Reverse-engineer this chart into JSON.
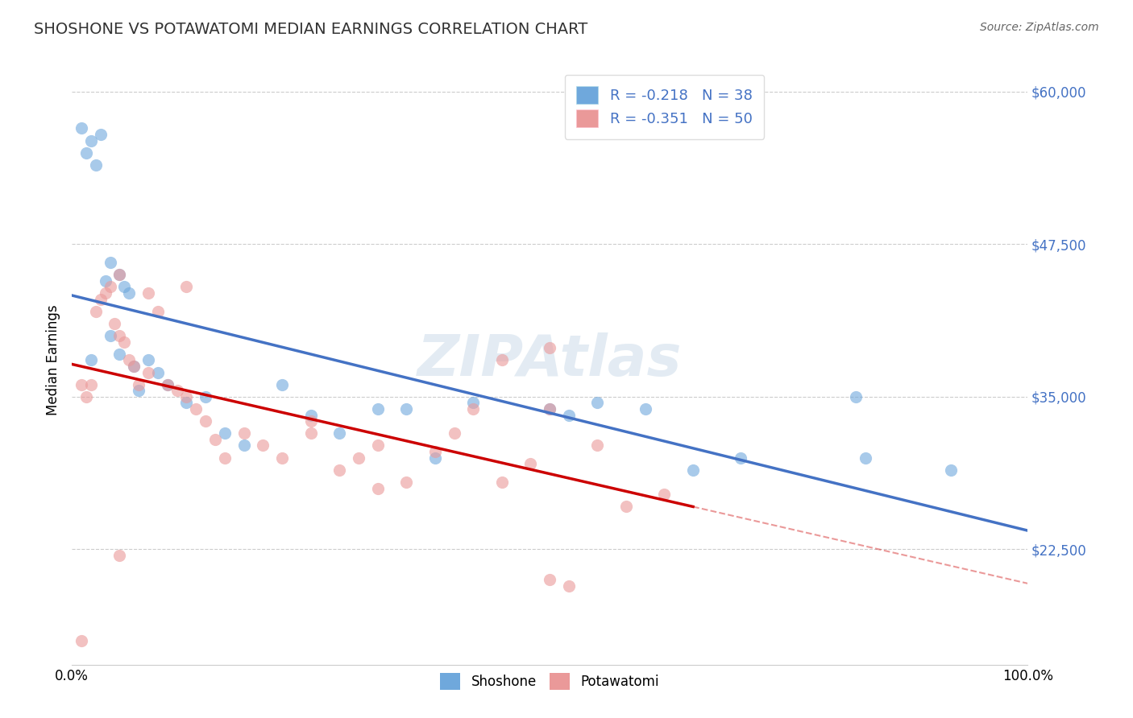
{
  "title": "SHOSHONE VS POTAWATOMI MEDIAN EARNINGS CORRELATION CHART",
  "source": "Source: ZipAtlas.com",
  "xlabel": "",
  "ylabel": "Median Earnings",
  "xlim": [
    0.0,
    1.0
  ],
  "ylim": [
    13000,
    63000
  ],
  "yticks": [
    22500,
    35000,
    47500,
    60000
  ],
  "ytick_labels": [
    "$22,500",
    "$35,000",
    "$47,500",
    "$60,000"
  ],
  "xticks": [
    0.0,
    0.1,
    0.2,
    0.3,
    0.4,
    0.5,
    0.6,
    0.7,
    0.8,
    0.9,
    1.0
  ],
  "xtick_labels": [
    "0.0%",
    "",
    "",
    "",
    "",
    "",
    "",
    "",
    "",
    "",
    "100.0%"
  ],
  "shoshone_color": "#6fa8dc",
  "potawatomi_color": "#ea9999",
  "shoshone_line_color": "#4472c4",
  "potawatomi_line_color": "#cc0000",
  "legend_r_shoshone": "R = -0.218",
  "legend_n_shoshone": "N = 38",
  "legend_r_potawatomi": "R = -0.351",
  "legend_n_potawatomi": "N = 50",
  "shoshone_x": [
    0.01,
    0.02,
    0.03,
    0.015,
    0.025,
    0.035,
    0.04,
    0.05,
    0.055,
    0.06,
    0.02,
    0.04,
    0.05,
    0.065,
    0.07,
    0.08,
    0.09,
    0.1,
    0.12,
    0.14,
    0.16,
    0.18,
    0.22,
    0.25,
    0.28,
    0.32,
    0.35,
    0.38,
    0.42,
    0.5,
    0.52,
    0.55,
    0.6,
    0.65,
    0.7,
    0.82,
    0.83,
    0.92
  ],
  "shoshone_y": [
    57000,
    56000,
    56500,
    55000,
    54000,
    44500,
    46000,
    45000,
    44000,
    43500,
    38000,
    40000,
    38500,
    37500,
    35500,
    38000,
    37000,
    36000,
    34500,
    35000,
    32000,
    31000,
    36000,
    33500,
    32000,
    34000,
    34000,
    30000,
    34500,
    34000,
    33500,
    34500,
    34000,
    29000,
    30000,
    35000,
    30000,
    29000
  ],
  "potawatomi_x": [
    0.01,
    0.015,
    0.02,
    0.025,
    0.03,
    0.035,
    0.04,
    0.045,
    0.05,
    0.055,
    0.06,
    0.065,
    0.07,
    0.08,
    0.09,
    0.1,
    0.11,
    0.12,
    0.13,
    0.14,
    0.15,
    0.16,
    0.18,
    0.2,
    0.22,
    0.25,
    0.28,
    0.3,
    0.32,
    0.35,
    0.38,
    0.4,
    0.42,
    0.45,
    0.48,
    0.5,
    0.52,
    0.55,
    0.58,
    0.62,
    0.01,
    0.05,
    0.08,
    0.12,
    0.25,
    0.32,
    0.45,
    0.5,
    0.5,
    0.05
  ],
  "potawatomi_y": [
    15000,
    35000,
    36000,
    42000,
    43000,
    43500,
    44000,
    41000,
    40000,
    39500,
    38000,
    37500,
    36000,
    43500,
    42000,
    36000,
    35500,
    35000,
    34000,
    33000,
    31500,
    30000,
    32000,
    31000,
    30000,
    33000,
    29000,
    30000,
    31000,
    28000,
    30500,
    32000,
    34000,
    28000,
    29500,
    34000,
    19500,
    31000,
    26000,
    27000,
    36000,
    45000,
    37000,
    44000,
    32000,
    27500,
    38000,
    39000,
    20000,
    22000
  ],
  "background_color": "#ffffff",
  "grid_color": "#cccccc",
  "watermark": "ZIPAtlas",
  "watermark_color": "#c8d9e8"
}
